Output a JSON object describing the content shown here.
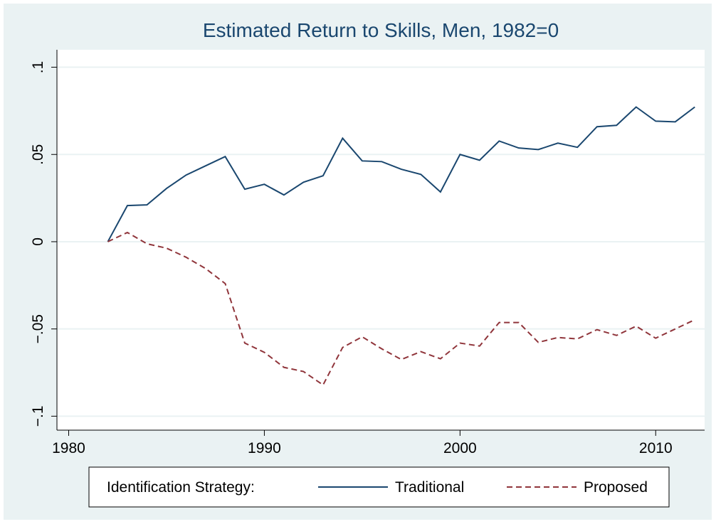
{
  "chart_data": {
    "type": "line",
    "title": "Estimated Return to Skills, Men, 1982=0",
    "legend_title": "Identification Strategy:",
    "x": [
      1982,
      1983,
      1984,
      1985,
      1986,
      1987,
      1988,
      1989,
      1990,
      1991,
      1992,
      1993,
      1994,
      1995,
      1996,
      1997,
      1998,
      1999,
      2000,
      2001,
      2002,
      2003,
      2004,
      2005,
      2006,
      2007,
      2008,
      2009,
      2010,
      2011,
      2012
    ],
    "series": [
      {
        "name": "Traditional",
        "color": "#1a476f",
        "dash": "solid",
        "values": [
          0,
          0.0207,
          0.0211,
          0.0305,
          0.0382,
          0.0435,
          0.0488,
          0.0301,
          0.0329,
          0.0268,
          0.0341,
          0.0378,
          0.0593,
          0.0463,
          0.0459,
          0.0415,
          0.0386,
          0.0285,
          0.05,
          0.0467,
          0.0577,
          0.0537,
          0.0528,
          0.0565,
          0.0541,
          0.0659,
          0.0667,
          0.0772,
          0.0691,
          0.0687,
          0.0772
        ]
      },
      {
        "name": "Proposed",
        "color": "#90353b",
        "dash": "dashed",
        "values": [
          0,
          0.0053,
          -0.0012,
          -0.0037,
          -0.0089,
          -0.0154,
          -0.024,
          -0.0581,
          -0.0634,
          -0.072,
          -0.0744,
          -0.0821,
          -0.0606,
          -0.0545,
          -0.0614,
          -0.0675,
          -0.063,
          -0.0671,
          -0.0581,
          -0.0598,
          -0.0463,
          -0.0463,
          -0.0577,
          -0.0549,
          -0.0557,
          -0.0504,
          -0.0537,
          -0.0484,
          -0.0553,
          -0.05,
          -0.0447
        ]
      }
    ],
    "xlim": [
      1979.4,
      2012.5
    ],
    "xticks": [
      1980,
      1990,
      2000,
      2010
    ],
    "ylim": [
      -0.108,
      0.11
    ],
    "yticks": [
      {
        "value": -0.1,
        "label": "−.1"
      },
      {
        "value": -0.05,
        "label": "−.05"
      },
      0,
      {
        "value": 0.05,
        "label": ".05"
      },
      {
        "value": 0.1,
        "label": ".1"
      }
    ],
    "grid": true
  }
}
